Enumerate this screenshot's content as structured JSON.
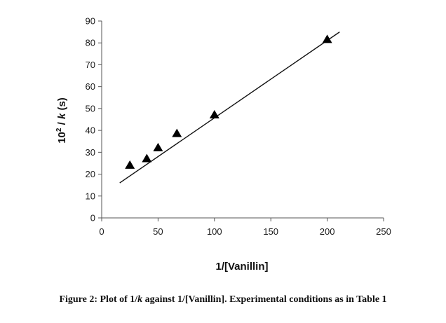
{
  "chart_data": {
    "type": "scatter",
    "xlabel": "1/[Vanillin]",
    "ylabel": {
      "pre": "10",
      "sup": "2",
      "mid": " / ",
      "var": "k",
      "post": " (s)"
    },
    "xlim": [
      0,
      250
    ],
    "ylim": [
      0,
      90
    ],
    "xticks": [
      0,
      50,
      100,
      150,
      200,
      250
    ],
    "yticks": [
      0,
      10,
      20,
      30,
      40,
      50,
      60,
      70,
      80,
      90
    ],
    "grid": false,
    "marker": "triangle",
    "colors": {
      "marker": "#000000",
      "line": "#111111",
      "axis": "#555555"
    },
    "points": [
      {
        "x": 25,
        "y": 24
      },
      {
        "x": 40,
        "y": 27
      },
      {
        "x": 50,
        "y": 32
      },
      {
        "x": 66.7,
        "y": 38.5
      },
      {
        "x": 100,
        "y": 47
      },
      {
        "x": 200,
        "y": 81.5
      }
    ],
    "fit_line": {
      "x0": 16,
      "y0": 16,
      "x1": 211,
      "y1": 85
    }
  },
  "caption": {
    "part1": "Figure 2: Plot of 1/",
    "var": "k",
    "part2": " against 1/[Vanillin]. Experimental conditions as in Table 1"
  }
}
